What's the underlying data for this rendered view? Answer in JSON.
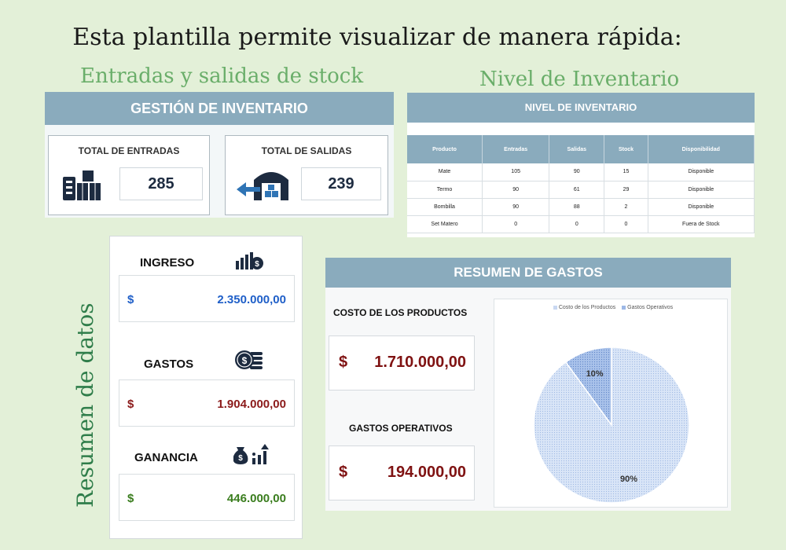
{
  "headline": "Esta plantilla permite visualizar de manera rápida:",
  "captions": {
    "entradas": "Entradas y salidas de stock",
    "nivel": "Nivel de Inventario",
    "resumen": "Resumen de datos"
  },
  "gestion": {
    "title": "GESTIÓN DE INVENTARIO",
    "entradas_label": "TOTAL DE ENTRADAS",
    "entradas_value": "285",
    "salidas_label": "TOTAL DE SALIDAS",
    "salidas_value": "239"
  },
  "nivel": {
    "title": "NIVEL DE INVENTARIO",
    "columns": [
      "Producto",
      "Entradas",
      "Salidas",
      "Stock",
      "Disponibilidad"
    ],
    "rows": [
      [
        "Mate",
        "105",
        "90",
        "15",
        "Disponible"
      ],
      [
        "Termo",
        "90",
        "61",
        "29",
        "Disponible"
      ],
      [
        "Bombilla",
        "90",
        "88",
        "2",
        "Disponible"
      ],
      [
        "Set Matero",
        "0",
        "0",
        "0",
        "Fuera de Stock"
      ]
    ]
  },
  "datos": {
    "ingreso_label": "INGRESO",
    "ingreso_currency": "$",
    "ingreso_value": "2.350.000,00",
    "gastos_label": "GASTOS",
    "gastos_currency": "$",
    "gastos_value": "1.904.000,00",
    "ganancia_label": "GANANCIA",
    "ganancia_currency": "$",
    "ganancia_value": "446.000,00"
  },
  "gastos": {
    "title": "RESUMEN DE GASTOS",
    "costo_label": "COSTO DE LOS PRODUCTOS",
    "costo_currency": "$",
    "costo_value": "1.710.000,00",
    "operativos_label": "GASTOS OPERATIVOS",
    "operativos_currency": "$",
    "operativos_value": "194.000,00"
  },
  "colors": {
    "header": "#8aabbd",
    "ingreso": "#1f5fc8",
    "gastos": "#8b1a1a",
    "ganancia": "#3a7d1e",
    "out_of_stock": "#d21c1c"
  },
  "icons": [
    "boxes-checklist-icon",
    "warehouse-arrow-icon",
    "bar-chart-coin-icon",
    "coins-stack-icon",
    "money-bag-growth-icon"
  ],
  "chart_data": {
    "type": "pie",
    "categories": [
      "Costo de los Productos",
      "Gastos Operativos"
    ],
    "values": [
      90,
      10
    ],
    "labels": [
      "90%",
      "10%"
    ],
    "legend": "top",
    "colors": [
      "#c9d8f2",
      "#9db8e6"
    ]
  }
}
